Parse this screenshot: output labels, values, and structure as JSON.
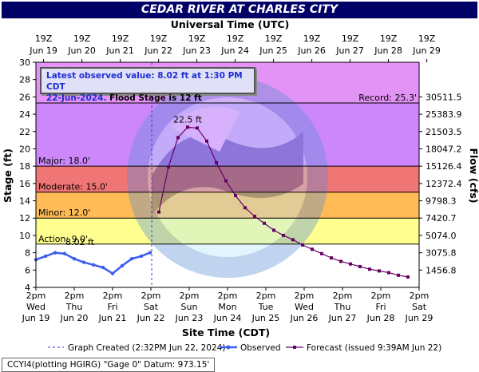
{
  "title": "CEDAR RIVER AT CHARLES CITY",
  "notice": {
    "line1": "Latest observed value: 8.02 ft at 1:30 PM CDT",
    "line2_date": "22-Jun-2024.",
    "line2_rest": "Flood Stage is 12 ft"
  },
  "caption": "CCYI4(plotting HGIRG) \"Gage 0\" Datum: 973.15'",
  "colors": {
    "title_bg": "#000066",
    "record": "#e392f5",
    "major": "#cd87fa",
    "moderate": "#f07575",
    "minor": "#ffbb55",
    "action": "#ffff90",
    "normal": "#ffffff",
    "observed": "#3d5cf2",
    "forecast": "#660066",
    "graph_created": "#3a3ad0"
  },
  "chart_data": {
    "type": "line",
    "title": "CEDAR RIVER AT CHARLES CITY",
    "xlabel_top": "Universal Time (UTC)",
    "xlabel_bottom": "Site Time (CDT)",
    "ylabel_left": "Stage (ft)",
    "ylabel_right": "Flow (cfs)",
    "ylim": [
      4,
      30
    ],
    "xlim": [
      "2024-06-19 14:00",
      "2024-06-29 14:00"
    ],
    "y_ticks": [
      4,
      6,
      8,
      10,
      12,
      14,
      16,
      18,
      20,
      22,
      24,
      26,
      28,
      30
    ],
    "x_ticks_top": [
      {
        "l1": "19Z",
        "l2": "Jun 19"
      },
      {
        "l1": "19Z",
        "l2": "Jun 20"
      },
      {
        "l1": "19Z",
        "l2": "Jun 21"
      },
      {
        "l1": "19Z",
        "l2": "Jun 22"
      },
      {
        "l1": "19Z",
        "l2": "Jun 23"
      },
      {
        "l1": "19Z",
        "l2": "Jun 24"
      },
      {
        "l1": "19Z",
        "l2": "Jun 25"
      },
      {
        "l1": "19Z",
        "l2": "Jun 26"
      },
      {
        "l1": "19Z",
        "l2": "Jun 27"
      },
      {
        "l1": "19Z",
        "l2": "Jun 28"
      },
      {
        "l1": "19Z",
        "l2": "Jun 29"
      }
    ],
    "x_ticks_bottom": [
      {
        "l1": "2pm",
        "l2": "Wed",
        "l3": "Jun 19"
      },
      {
        "l1": "2pm",
        "l2": "Thu",
        "l3": "Jun 20"
      },
      {
        "l1": "2pm",
        "l2": "Fri",
        "l3": "Jun 21"
      },
      {
        "l1": "2pm",
        "l2": "Sat",
        "l3": "Jun 22"
      },
      {
        "l1": "2pm",
        "l2": "Sun",
        "l3": "Jun 23"
      },
      {
        "l1": "2pm",
        "l2": "Mon",
        "l3": "Jun 24"
      },
      {
        "l1": "2pm",
        "l2": "Tue",
        "l3": "Jun 25"
      },
      {
        "l1": "2pm",
        "l2": "Wed",
        "l3": "Jun 26"
      },
      {
        "l1": "2pm",
        "l2": "Thu",
        "l3": "Jun 27"
      },
      {
        "l1": "2pm",
        "l2": "Fri",
        "l3": "Jun 28"
      },
      {
        "l1": "2pm",
        "l2": "Sat",
        "l3": "Jun 29"
      }
    ],
    "flow_ticks": [
      {
        "stage": 6,
        "label": "1456.8"
      },
      {
        "stage": 8,
        "label": "3075.8"
      },
      {
        "stage": 10,
        "label": "5074.0"
      },
      {
        "stage": 12,
        "label": "7420.7"
      },
      {
        "stage": 14,
        "label": "9798.3"
      },
      {
        "stage": 16,
        "label": "12372.4"
      },
      {
        "stage": 18,
        "label": "15126.4"
      },
      {
        "stage": 20,
        "label": "18047.2"
      },
      {
        "stage": 22,
        "label": "21503.5"
      },
      {
        "stage": 24,
        "label": "25383.9"
      },
      {
        "stage": 26,
        "label": "30511.5"
      }
    ],
    "zones": [
      {
        "name": "Record",
        "from": 25.3,
        "to": 30
      },
      {
        "name": "Major",
        "from": 18,
        "to": 25.3
      },
      {
        "name": "Moderate",
        "from": 15,
        "to": 18
      },
      {
        "name": "Minor",
        "from": 12,
        "to": 15
      },
      {
        "name": "Action",
        "from": 9,
        "to": 12
      }
    ],
    "threshold_labels": [
      {
        "label": "Record: 25.3'",
        "value": 25.3
      },
      {
        "label": "Major: 18.0'",
        "value": 18
      },
      {
        "label": "Moderate: 15.0'",
        "value": 15
      },
      {
        "label": "Minor: 12.0'",
        "value": 12
      },
      {
        "label": "Action: 9.0'",
        "value": 9
      }
    ],
    "graph_created": "2024-06-22 14:32",
    "annotations": [
      {
        "text": "8.02 ft",
        "series": "observed"
      },
      {
        "text": "22.5 ft",
        "series": "forecast"
      }
    ],
    "observed": {
      "x": [
        "2024-06-19 14:00",
        "2024-06-19 20:00",
        "2024-06-20 02:00",
        "2024-06-20 08:00",
        "2024-06-20 14:00",
        "2024-06-20 20:00",
        "2024-06-21 02:00",
        "2024-06-21 08:00",
        "2024-06-21 14:00",
        "2024-06-21 20:00",
        "2024-06-22 02:00",
        "2024-06-22 08:00",
        "2024-06-22 13:30"
      ],
      "y": [
        7.2,
        7.6,
        8.0,
        7.9,
        7.3,
        6.9,
        6.6,
        6.3,
        5.6,
        6.5,
        7.3,
        7.6,
        8.02
      ]
    },
    "forecast": {
      "x": [
        "2024-06-22 19:00",
        "2024-06-23 01:00",
        "2024-06-23 07:00",
        "2024-06-23 13:00",
        "2024-06-23 19:00",
        "2024-06-24 01:00",
        "2024-06-24 07:00",
        "2024-06-24 13:00",
        "2024-06-24 19:00",
        "2024-06-25 01:00",
        "2024-06-25 07:00",
        "2024-06-25 13:00",
        "2024-06-25 19:00",
        "2024-06-26 01:00",
        "2024-06-26 07:00",
        "2024-06-26 13:00",
        "2024-06-26 19:00",
        "2024-06-27 01:00",
        "2024-06-27 07:00",
        "2024-06-27 13:00",
        "2024-06-27 19:00",
        "2024-06-28 01:00",
        "2024-06-28 07:00",
        "2024-06-28 13:00",
        "2024-06-28 19:00",
        "2024-06-29 01:00",
        "2024-06-29 07:00"
      ],
      "y": [
        12.7,
        17.9,
        21.3,
        22.5,
        22.4,
        20.9,
        18.4,
        16.3,
        14.6,
        13.2,
        12.2,
        11.4,
        10.6,
        10.0,
        9.5,
        8.9,
        8.4,
        7.9,
        7.4,
        7.0,
        6.7,
        6.4,
        6.1,
        5.9,
        5.7,
        5.4,
        5.2
      ]
    },
    "legend": [
      {
        "label": "Graph Created (2:32PM Jun 22, 2024)",
        "type": "dashed"
      },
      {
        "label": "Observed",
        "type": "observed"
      },
      {
        "label": "Forecast (issued 9:39AM Jun 22)",
        "type": "forecast"
      }
    ],
    "legend_placement": "bottom",
    "grid": false
  }
}
